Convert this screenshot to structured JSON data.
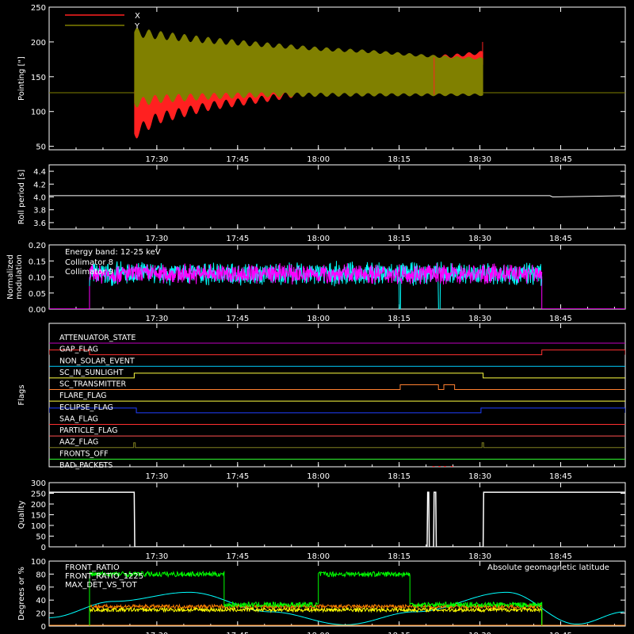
{
  "time_axis": {
    "ticks": [
      "17:30",
      "17:45",
      "18:00",
      "18:15",
      "18:30",
      "18:45"
    ],
    "tick_minutes": [
      1050,
      1065,
      1080,
      1095,
      1110,
      1125
    ],
    "range_minutes": [
      1030,
      1137
    ]
  },
  "chart_data": [
    {
      "type": "line",
      "ylabel": "Pointing [\"]",
      "ylim": [
        45,
        250
      ],
      "yticks": [
        "50",
        "100",
        "150",
        "200",
        "250"
      ],
      "ytick_values": [
        50,
        100,
        150,
        200,
        250
      ],
      "legend": [
        {
          "name": "X",
          "color": "#ff2020"
        },
        {
          "name": "Y",
          "color": "#808000"
        }
      ],
      "baseline": 127,
      "active_range": [
        1045.8,
        1110.6
      ],
      "series": [
        {
          "name": "X",
          "color": "#ff2020",
          "x": [
            1045.8,
            1050,
            1060,
            1070,
            1080,
            1090,
            1100,
            1105,
            1110.6
          ],
          "low": [
            68,
            90,
            108,
            118,
            130,
            142,
            155,
            160,
            168
          ],
          "high": [
            130,
            140,
            150,
            160,
            168,
            172,
            178,
            180,
            185
          ]
        },
        {
          "name": "Y",
          "color": "#808000",
          "x": [
            1045.8,
            1050,
            1060,
            1070,
            1080,
            1090,
            1100,
            1105,
            1110.6
          ],
          "low": [
            112,
            118,
            122,
            124,
            124,
            124,
            124,
            124,
            124
          ],
          "high": [
            214,
            210,
            202,
            196,
            190,
            186,
            180,
            178,
            176
          ]
        }
      ]
    },
    {
      "type": "line",
      "ylabel": "Roll period [s]",
      "ylim": [
        3.5,
        4.5
      ],
      "yticks": [
        "3.6",
        "3.8",
        "4.0",
        "4.2",
        "4.4"
      ],
      "ytick_values": [
        3.6,
        3.8,
        4.0,
        4.2,
        4.4
      ],
      "series": [
        {
          "name": "roll",
          "color": "#ffffff",
          "x": [
            1030,
            1123,
            1123.5,
            1137
          ],
          "y": [
            4.02,
            4.02,
            4.0,
            4.02
          ]
        }
      ]
    },
    {
      "type": "line",
      "ylabel": "Normalized modulation",
      "ylim": [
        0,
        0.2
      ],
      "yticks": [
        "0.00",
        "0.05",
        "0.10",
        "0.15",
        "0.20"
      ],
      "ytick_values": [
        0,
        0.05,
        0.1,
        0.15,
        0.2
      ],
      "annotation": "Energy band: 12-25 keV",
      "active_range": [
        1037.5,
        1121.5
      ],
      "series": [
        {
          "name": "Collimator 8",
          "color": "#00ffff",
          "mean": 0.11,
          "spread": 0.04
        },
        {
          "name": "Collimator 9",
          "color": "#ff00ff",
          "mean": 0.11,
          "spread": 0.035
        }
      ]
    },
    {
      "type": "flags",
      "ylabel": "Flags",
      "flags": [
        {
          "name": "ATTENUATOR_STATE",
          "color": "#c000c0",
          "on": []
        },
        {
          "name": "SAA_FLAG_GAP_FLAG",
          "label": "GAP_FLAG",
          "color": "#ff3030",
          "on": [
            [
              1030,
              1037.5
            ],
            [
              1121.5,
              1137
            ]
          ]
        },
        {
          "name": "NON_SOLAR_EVENT",
          "color": "#00d0ff",
          "on": []
        },
        {
          "name": "SC_IN_SUNLIGHT",
          "color": "#ffff40",
          "on": [
            [
              1045.8,
              1110.6
            ]
          ]
        },
        {
          "name": "SC_TRANSMITTER",
          "color": "#ff8030",
          "on": [
            [
              1095.2,
              1102.3
            ],
            [
              1103.3,
              1105.3
            ]
          ]
        },
        {
          "name": "FLARE_FLAG",
          "color": "#ffff40",
          "on": []
        },
        {
          "name": "ECLIPSE_FLAG",
          "color": "#2040ff",
          "on": [
            [
              1030,
              1046.2
            ],
            [
              1110.2,
              1137
            ]
          ]
        },
        {
          "name": "SAA_FLAG",
          "color": "#ff3030",
          "on": []
        },
        {
          "name": "PARTICLE_FLAG",
          "color": "#ff5050",
          "on": []
        },
        {
          "name": "AAZ_FLAG",
          "color": "#808020",
          "on": [
            [
              1045.7,
              1046.0
            ],
            [
              1110.4,
              1110.7
            ]
          ]
        },
        {
          "name": "FRONTS_OFF",
          "color": "#30ff30",
          "on": []
        },
        {
          "name": "BAD_PACKETS",
          "color": "#ff2020",
          "on": [
            [
              1101.2,
              1101.6
            ],
            [
              1102.3,
              1102.7
            ],
            [
              1103.3,
              1103.7
            ],
            [
              1104.6,
              1105.0
            ]
          ]
        }
      ]
    },
    {
      "type": "line",
      "ylabel": "Quality",
      "ylim": [
        0,
        300
      ],
      "yticks": [
        "0",
        "50",
        "100",
        "150",
        "200",
        "250",
        "300"
      ],
      "ytick_values": [
        0,
        50,
        100,
        150,
        200,
        250,
        300
      ],
      "series": [
        {
          "name": "quality",
          "color": "#ffffff",
          "x": [
            1030,
            1045.8,
            1045.9,
            1100.2,
            1100.3,
            1100.5,
            1100.6,
            1101.4,
            1101.5,
            1101.8,
            1101.9,
            1110.6,
            1110.7,
            1137
          ],
          "y": [
            255,
            255,
            0,
            0,
            255,
            255,
            0,
            0,
            255,
            255,
            0,
            0,
            255,
            255
          ]
        }
      ]
    },
    {
      "type": "line",
      "ylabel": "Degrees or %",
      "ylim": [
        0,
        100
      ],
      "yticks": [
        "0",
        "20",
        "40",
        "60",
        "80",
        "100"
      ],
      "ytick_values": [
        0,
        20,
        40,
        60,
        80,
        100
      ],
      "annotation": "Absolute geomagnetic latitude",
      "active_range": [
        1037.5,
        1121.5
      ],
      "series": [
        {
          "name": "FRONT_RATIO",
          "color": "#ffff00",
          "levels": [
            [
              1037.5,
              1121.5,
              25
            ]
          ]
        },
        {
          "name": "FRONT_RATIO_1225",
          "label": "FRONT_RATIO_1225",
          "color": "#00ff00",
          "levels": [
            [
              1037.5,
              1062.5,
              80
            ],
            [
              1062.5,
              1080,
              33
            ],
            [
              1080,
              1097,
              80
            ],
            [
              1097,
              1106,
              33
            ],
            [
              1106,
              1121.5,
              33
            ]
          ]
        },
        {
          "name": "MAX_DET_VS_TOT",
          "color": "#ff8000",
          "levels": [
            [
              1037.5,
              1121.5,
              30
            ]
          ]
        },
        {
          "name": "Absolute geomagnetic latitude",
          "color": "#00ffff",
          "x": [
            1030,
            1042,
            1056,
            1071,
            1085,
            1098,
            1115,
            1128,
            1137
          ],
          "y": [
            13,
            38,
            52,
            22,
            2,
            22,
            52,
            3,
            22
          ]
        }
      ]
    }
  ]
}
